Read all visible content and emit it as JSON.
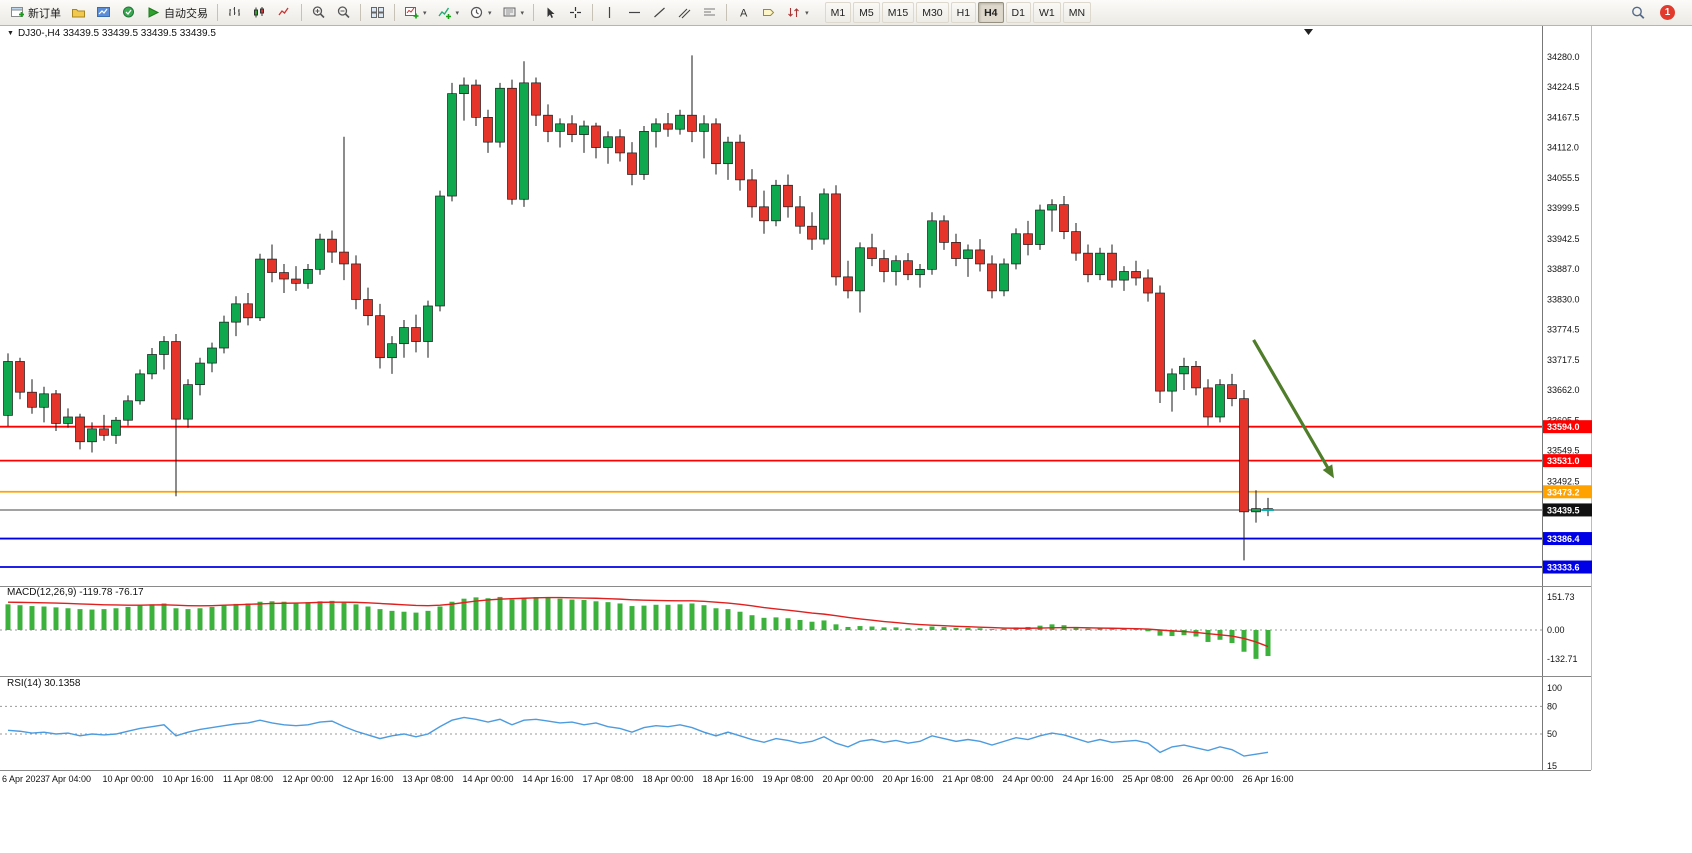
{
  "toolbar": {
    "new_order_label": "新订单",
    "autotrading_label": "自动交易",
    "timeframes": [
      "M1",
      "M5",
      "M15",
      "M30",
      "H1",
      "H4",
      "D1",
      "W1",
      "MN"
    ],
    "active_timeframe": "H4",
    "notification_count": "1"
  },
  "chart": {
    "ohlc_line": "DJ30-,H4 33439.5 33439.5 33439.5 33439.5"
  },
  "chart_data": {
    "type": "candlestick",
    "symbol": "DJ30-",
    "period": "H4",
    "current_price": 33439.5,
    "x_label_step": 5,
    "x_labels": [
      "6 Apr 2023",
      "7 Apr 04:00",
      "10 Apr 00:00",
      "10 Apr 16:00",
      "11 Apr 08:00",
      "12 Apr 00:00",
      "12 Apr 16:00",
      "13 Apr 08:00",
      "14 Apr 00:00",
      "14 Apr 16:00",
      "17 Apr 08:00",
      "18 Apr 00:00",
      "18 Apr 16:00",
      "19 Apr 08:00",
      "20 Apr 00:00",
      "20 Apr 16:00",
      "21 Apr 08:00",
      "24 Apr 00:00",
      "24 Apr 16:00",
      "25 Apr 08:00",
      "26 Apr 00:00",
      "26 Apr 16:00"
    ],
    "price_axis_ticks": [
      "34280.0",
      "34224.5",
      "34167.5",
      "34112.0",
      "34055.5",
      "33999.5",
      "33942.5",
      "33887.0",
      "33830.0",
      "33774.5",
      "33717.5",
      "33662.0",
      "33605.5",
      "33549.5",
      "33492.5"
    ],
    "candles": [
      [
        33615,
        33730,
        33595,
        33715
      ],
      [
        33715,
        33722,
        33645,
        33658
      ],
      [
        33658,
        33682,
        33618,
        33630
      ],
      [
        33630,
        33668,
        33602,
        33655
      ],
      [
        33655,
        33662,
        33586,
        33600
      ],
      [
        33600,
        33628,
        33592,
        33612
      ],
      [
        33612,
        33618,
        33552,
        33566
      ],
      [
        33566,
        33602,
        33546,
        33590
      ],
      [
        33590,
        33616,
        33568,
        33578
      ],
      [
        33578,
        33612,
        33562,
        33606
      ],
      [
        33606,
        33652,
        33596,
        33642
      ],
      [
        33642,
        33700,
        33635,
        33692
      ],
      [
        33692,
        33740,
        33682,
        33728
      ],
      [
        33728,
        33762,
        33700,
        33752
      ],
      [
        33752,
        33766,
        33465,
        33608
      ],
      [
        33608,
        33682,
        33592,
        33672
      ],
      [
        33672,
        33722,
        33652,
        33712
      ],
      [
        33712,
        33750,
        33695,
        33740
      ],
      [
        33740,
        33800,
        33730,
        33788
      ],
      [
        33788,
        33836,
        33762,
        33822
      ],
      [
        33822,
        33842,
        33782,
        33796
      ],
      [
        33796,
        33915,
        33790,
        33905
      ],
      [
        33905,
        33932,
        33862,
        33880
      ],
      [
        33880,
        33896,
        33842,
        33868
      ],
      [
        33868,
        33892,
        33846,
        33860
      ],
      [
        33860,
        33896,
        33850,
        33886
      ],
      [
        33886,
        33952,
        33876,
        33942
      ],
      [
        33942,
        33958,
        33898,
        33918
      ],
      [
        33918,
        34132,
        33866,
        33896
      ],
      [
        33896,
        33912,
        33812,
        33830
      ],
      [
        33830,
        33852,
        33782,
        33800
      ],
      [
        33800,
        33822,
        33702,
        33722
      ],
      [
        33722,
        33762,
        33692,
        33748
      ],
      [
        33748,
        33792,
        33722,
        33778
      ],
      [
        33778,
        33802,
        33732,
        33752
      ],
      [
        33752,
        33828,
        33722,
        33818
      ],
      [
        33818,
        34032,
        33808,
        34022
      ],
      [
        34022,
        34232,
        34012,
        34212
      ],
      [
        34212,
        34242,
        34162,
        34228
      ],
      [
        34228,
        34238,
        34152,
        34168
      ],
      [
        34168,
        34182,
        34102,
        34122
      ],
      [
        34122,
        34232,
        34112,
        34222
      ],
      [
        34222,
        34238,
        34006,
        34016
      ],
      [
        34016,
        34272,
        34002,
        34232
      ],
      [
        34232,
        34242,
        34152,
        34172
      ],
      [
        34172,
        34192,
        34122,
        34142
      ],
      [
        34142,
        34166,
        34112,
        34156
      ],
      [
        34156,
        34172,
        34122,
        34136
      ],
      [
        34136,
        34162,
        34102,
        34152
      ],
      [
        34152,
        34158,
        34092,
        34112
      ],
      [
        34112,
        34142,
        34082,
        34132
      ],
      [
        34132,
        34146,
        34086,
        34102
      ],
      [
        34102,
        34122,
        34042,
        34062
      ],
      [
        34062,
        34152,
        34052,
        34142
      ],
      [
        34142,
        34166,
        34112,
        34156
      ],
      [
        34156,
        34176,
        34132,
        34146
      ],
      [
        34146,
        34182,
        34136,
        34172
      ],
      [
        34172,
        34283,
        34122,
        34142
      ],
      [
        34142,
        34172,
        34092,
        34156
      ],
      [
        34156,
        34166,
        34062,
        34082
      ],
      [
        34082,
        34132,
        34052,
        34122
      ],
      [
        34122,
        34136,
        34032,
        34052
      ],
      [
        34052,
        34072,
        33982,
        34002
      ],
      [
        34002,
        34032,
        33952,
        33976
      ],
      [
        33976,
        34052,
        33966,
        34042
      ],
      [
        34042,
        34062,
        33982,
        34002
      ],
      [
        34002,
        34022,
        33952,
        33966
      ],
      [
        33966,
        33992,
        33922,
        33942
      ],
      [
        33942,
        34036,
        33932,
        34026
      ],
      [
        34026,
        34042,
        33856,
        33872
      ],
      [
        33872,
        33902,
        33832,
        33846
      ],
      [
        33846,
        33936,
        33806,
        33926
      ],
      [
        33926,
        33952,
        33892,
        33906
      ],
      [
        33906,
        33922,
        33862,
        33882
      ],
      [
        33882,
        33912,
        33856,
        33902
      ],
      [
        33902,
        33916,
        33866,
        33876
      ],
      [
        33876,
        33896,
        33852,
        33886
      ],
      [
        33886,
        33992,
        33876,
        33976
      ],
      [
        33976,
        33986,
        33922,
        33936
      ],
      [
        33936,
        33952,
        33892,
        33906
      ],
      [
        33906,
        33932,
        33872,
        33922
      ],
      [
        33922,
        33942,
        33882,
        33896
      ],
      [
        33896,
        33912,
        33832,
        33846
      ],
      [
        33846,
        33906,
        33836,
        33896
      ],
      [
        33896,
        33962,
        33886,
        33952
      ],
      [
        33952,
        33976,
        33912,
        33932
      ],
      [
        33932,
        34006,
        33922,
        33996
      ],
      [
        33996,
        34016,
        33956,
        34006
      ],
      [
        34006,
        34022,
        33942,
        33956
      ],
      [
        33956,
        33972,
        33902,
        33916
      ],
      [
        33916,
        33932,
        33862,
        33876
      ],
      [
        33876,
        33926,
        33866,
        33916
      ],
      [
        33916,
        33932,
        33852,
        33866
      ],
      [
        33866,
        33892,
        33846,
        33882
      ],
      [
        33882,
        33902,
        33856,
        33870
      ],
      [
        33870,
        33886,
        33826,
        33842
      ],
      [
        33842,
        33856,
        33638,
        33660
      ],
      [
        33660,
        33702,
        33622,
        33692
      ],
      [
        33692,
        33722,
        33662,
        33706
      ],
      [
        33706,
        33716,
        33652,
        33666
      ],
      [
        33666,
        33682,
        33596,
        33612
      ],
      [
        33612,
        33682,
        33602,
        33672
      ],
      [
        33672,
        33692,
        33632,
        33646
      ],
      [
        33646,
        33662,
        33346,
        33436
      ],
      [
        33436,
        33476,
        33416,
        33442
      ],
      [
        33442,
        33462,
        33428,
        33439.5
      ]
    ],
    "horizontal_lines": [
      {
        "name": "resistance-line-1",
        "price": 33594.0,
        "label": "33594.0",
        "color": "#ff0000",
        "width": 1.8
      },
      {
        "name": "resistance-line-2",
        "price": 33531.0,
        "label": "33531.0",
        "color": "#ff0000",
        "width": 1.8
      },
      {
        "name": "pivot-line",
        "price": 33473.2,
        "label": "33473.2",
        "color": "#ffa200",
        "width": 1.8
      },
      {
        "name": "current-price-line",
        "price": 33439.5,
        "label": "33439.5",
        "color": "#444444",
        "tag_color": "#111111",
        "width": 1
      },
      {
        "name": "support-line-1",
        "price": 33386.4,
        "label": "33386.4",
        "color": "#0000e6",
        "width": 1.8
      },
      {
        "name": "support-line-2",
        "price": 33333.6,
        "label": "33333.6",
        "color": "#0000e6",
        "width": 1.8
      }
    ],
    "arrow": {
      "from_bar": 103.8,
      "from_price": 33755,
      "to_bar": 110.5,
      "to_price": 33498,
      "color": "#4f7d2a"
    },
    "macd": {
      "label": "MACD(12,26,9)",
      "value_main": "-119.78",
      "value_signal": "-76.17",
      "axis_ticks": [
        "151.73",
        "0.00",
        "-132.71"
      ],
      "histogram": [
        118,
        114,
        110,
        108,
        104,
        100,
        96,
        94,
        96,
        100,
        106,
        112,
        118,
        122,
        100,
        96,
        100,
        106,
        114,
        120,
        122,
        130,
        132,
        130,
        126,
        128,
        132,
        134,
        128,
        118,
        108,
        96,
        88,
        84,
        80,
        88,
        108,
        130,
        144,
        150,
        146,
        152,
        140,
        148,
        151,
        148,
        144,
        140,
        138,
        132,
        128,
        122,
        110,
        112,
        116,
        116,
        118,
        122,
        114,
        100,
        96,
        84,
        68,
        56,
        58,
        54,
        46,
        38,
        44,
        26,
        14,
        18,
        16,
        12,
        12,
        8,
        8,
        16,
        14,
        10,
        10,
        8,
        4,
        6,
        12,
        14,
        20,
        26,
        22,
        14,
        6,
        8,
        4,
        6,
        4,
        -6,
        -26,
        -28,
        -24,
        -30,
        -55,
        -45,
        -60,
        -100,
        -132.71,
        -119.78
      ],
      "signal": [
        128,
        127,
        126,
        125,
        124,
        122,
        120,
        118,
        116,
        115,
        114,
        114,
        115,
        116,
        114,
        112,
        111,
        112,
        114,
        116,
        118,
        120,
        122,
        123,
        124,
        125,
        127,
        128,
        128,
        127,
        125,
        122,
        119,
        116,
        113,
        112,
        114,
        119,
        126,
        133,
        138,
        142,
        144,
        146,
        148,
        149,
        149,
        148,
        147,
        146,
        144,
        142,
        139,
        137,
        136,
        135,
        134,
        134,
        132,
        128,
        124,
        118,
        111,
        103,
        97,
        91,
        85,
        78,
        73,
        66,
        58,
        51,
        45,
        39,
        34,
        29,
        25,
        22,
        20,
        17,
        15,
        13,
        11,
        9,
        8,
        8,
        9,
        10,
        11,
        11,
        10,
        9,
        8,
        7,
        6,
        4,
        0,
        -4,
        -7,
        -11,
        -17,
        -22,
        -28,
        -39,
        -55,
        -76.17
      ]
    },
    "rsi": {
      "label": "RSI(14)",
      "value": "30.1358",
      "axis_ticks": [
        "100",
        "80",
        "50",
        "15"
      ],
      "levels": [
        80,
        50
      ],
      "values": [
        54,
        53,
        51,
        52,
        50,
        51,
        48,
        50,
        49,
        50,
        53,
        56,
        58,
        60,
        48,
        52,
        55,
        57,
        59,
        61,
        62,
        65,
        62,
        60,
        59,
        60,
        63,
        64,
        58,
        53,
        49,
        45,
        48,
        50,
        47,
        50,
        58,
        65,
        68,
        66,
        63,
        66,
        60,
        65,
        66,
        64,
        62,
        63,
        60,
        62,
        58,
        56,
        52,
        57,
        59,
        58,
        60,
        57,
        52,
        48,
        52,
        48,
        44,
        41,
        45,
        43,
        40,
        42,
        47,
        40,
        36,
        42,
        44,
        41,
        43,
        40,
        42,
        48,
        45,
        42,
        44,
        42,
        38,
        42,
        46,
        44,
        48,
        51,
        49,
        45,
        41,
        44,
        41,
        42,
        43,
        40,
        30,
        36,
        38,
        35,
        32,
        36,
        33,
        26,
        28,
        30.14
      ]
    },
    "colors": {
      "bull": "#0fa84f",
      "bear": "#e5352b",
      "macd_histogram": "#3cb23c",
      "macd_signal": "#e02020",
      "rsi": "#4d9ce0"
    }
  }
}
